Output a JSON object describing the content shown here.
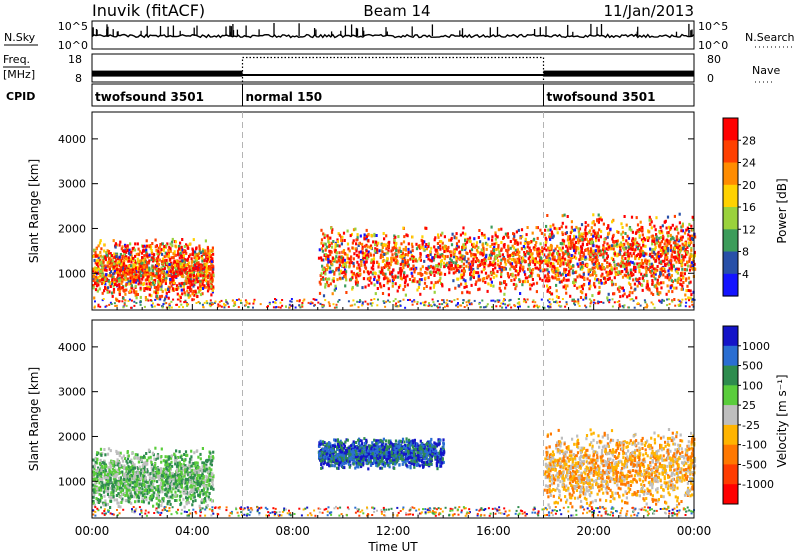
{
  "header": {
    "station": "Inuvik (fitACF)",
    "beam": "Beam 14",
    "date": "11/Jan/2013"
  },
  "chart_data": [
    {
      "type": "line",
      "panel": "noise",
      "left_label": "N.Sky",
      "right_label": "N.Search",
      "left_ticks": [
        "10^5",
        "10^0"
      ],
      "right_ticks": [
        "10^5",
        "10^0"
      ]
    },
    {
      "type": "line",
      "panel": "frequency-nave",
      "left_label_top": "Freq.",
      "left_label_bottom": "[MHz]",
      "right_label": "Nave",
      "left_ticks": [
        "18",
        "8"
      ],
      "right_ticks": [
        "80",
        "0"
      ],
      "freq_segments": [
        {
          "start_hour": 0,
          "end_hour": 6,
          "freq": 11
        },
        {
          "start_hour": 6,
          "end_hour": 18,
          "freq": 10.5
        },
        {
          "start_hour": 18,
          "end_hour": 24,
          "freq": 11
        }
      ],
      "nave_segments": [
        {
          "start_hour": 6,
          "end_hour": 18,
          "nave": 70
        }
      ]
    },
    {
      "type": "table",
      "panel": "cpid",
      "label": "CPID",
      "programs": [
        {
          "name": "twofsound 3501",
          "start_hour": 0
        },
        {
          "name": "normal 150",
          "start_hour": 6
        },
        {
          "name": "twofsound 3501",
          "start_hour": 18
        }
      ]
    },
    {
      "type": "heatmap",
      "panel": "power",
      "ylabel": "Slant Range [km]",
      "ylim": [
        180,
        4600
      ],
      "y_ticks": [
        1000,
        2000,
        3000,
        4000
      ],
      "colorbar_label": "Power [dB]",
      "colorbar_ticks": [
        "28",
        "24",
        "20",
        "16",
        "12",
        "8",
        "4"
      ],
      "colorbar_colors": [
        "#ff0000",
        "#ff4000",
        "#ff8c00",
        "#ffd200",
        "#9ad23c",
        "#3c9c5a",
        "#2850a8",
        "#1414ff"
      ],
      "approx_echo_regions": [
        {
          "start_hour": 0,
          "end_hour": 4.8,
          "range_low_km": 400,
          "range_high_km": 1800,
          "level": 22
        },
        {
          "start_hour": 9,
          "end_hour": 18,
          "range_low_km": 500,
          "range_high_km": 2100,
          "level": 24
        },
        {
          "start_hour": 18,
          "end_hour": 24,
          "range_low_km": 400,
          "range_high_km": 2400,
          "level": 28
        }
      ]
    },
    {
      "type": "heatmap",
      "panel": "velocity",
      "ylabel": "Slant Range [km]",
      "xlabel": "Time UT",
      "ylim": [
        180,
        4600
      ],
      "y_ticks": [
        1000,
        2000,
        3000,
        4000
      ],
      "x_ticks": [
        "00:00",
        "04:00",
        "08:00",
        "12:00",
        "16:00",
        "20:00",
        "00:00"
      ],
      "xlim_hours": [
        0,
        24
      ],
      "colorbar_label": "Velocity [m s⁻¹]",
      "colorbar_ticks": [
        "1000",
        "500",
        "100",
        "25",
        "-25",
        "-100",
        "-500",
        "-1000"
      ],
      "colorbar_colors": [
        "#1414c8",
        "#2a6ed2",
        "#2e8c4e",
        "#5acd3c",
        "#bebebe",
        "#ffb400",
        "#ff7800",
        "#ff3c00",
        "#ff0000"
      ],
      "approx_echo_regions": [
        {
          "start_hour": 0,
          "end_hour": 4.8,
          "range_low_km": 400,
          "range_high_km": 1800,
          "velocity": 100
        },
        {
          "start_hour": 9,
          "end_hour": 14,
          "range_low_km": 1300,
          "range_high_km": 2000,
          "velocity": 500
        },
        {
          "start_hour": 18,
          "end_hour": 24,
          "range_low_km": 400,
          "range_high_km": 2200,
          "velocity": -100
        }
      ]
    }
  ]
}
